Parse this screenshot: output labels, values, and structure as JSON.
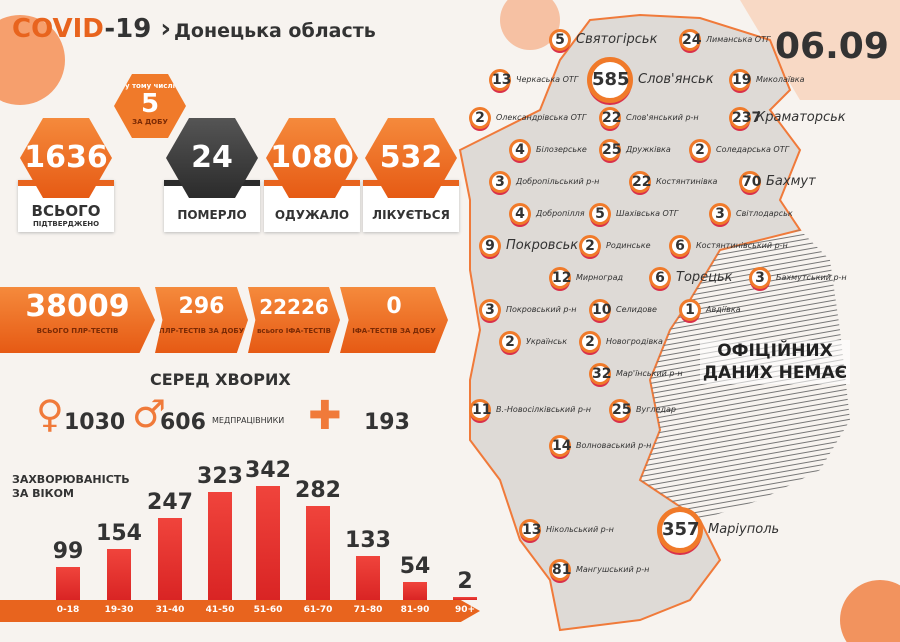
{
  "header": {
    "title_a": "COVID",
    "title_b": "-19",
    "subtitle": "Донецька область",
    "date": "06.09"
  },
  "totals": {
    "confirmed": {
      "value": "1636",
      "label": "ВСЬОГО",
      "sublabel": "ПІДТВЕРДЖЕНО"
    },
    "daily": {
      "pre": "у тому числі",
      "value": "5",
      "label": "ЗА ДОБУ"
    },
    "died": {
      "value": "24",
      "label": "ПОМЕРЛО"
    },
    "recovered": {
      "value": "1080",
      "label": "ОДУЖАЛО"
    },
    "treated": {
      "value": "532",
      "label": "ЛІКУЄТЬСЯ"
    }
  },
  "tests": [
    {
      "value": "38009",
      "label": "ВСЬОГО ПЛР-ТЕСТІВ"
    },
    {
      "value": "296",
      "label": "ПЛР-ТЕСТІВ ЗА ДОБУ"
    },
    {
      "value": "22226",
      "label": "всього ІФА-ТЕСТІВ"
    },
    {
      "value": "0",
      "label": "ІФА-ТЕСТІВ ЗА ДОБУ"
    }
  ],
  "among": {
    "title": "СЕРЕД ХВОРИХ",
    "female": "1030",
    "male": "606",
    "medics_label": "МЕДПРАЦІВНИКИ",
    "medics": "193"
  },
  "chart_data": {
    "type": "bar",
    "title": "ЗАХВОРЮВАНІСТЬ ЗА ВІКОМ",
    "categories": [
      "0-18",
      "19-30",
      "31-40",
      "41-50",
      "51-60",
      "61-70",
      "71-80",
      "81-90",
      "90+"
    ],
    "values": [
      99,
      154,
      247,
      323,
      342,
      282,
      133,
      54,
      2
    ],
    "color": "#e8302c"
  },
  "map": {
    "no_data": "ОФІЦІЙНИХ ДАНИХ НЕМАЄ",
    "markers": [
      {
        "value": "5",
        "label": "Святогірськ"
      },
      {
        "value": "24",
        "label": "Лиманська ОТГ"
      },
      {
        "value": "13",
        "label": "Черкаська ОТГ"
      },
      {
        "value": "585",
        "label": "Слов'янськ"
      },
      {
        "value": "19",
        "label": "Миколаївка"
      },
      {
        "value": "237",
        "label": "Краматорськ"
      },
      {
        "value": "22",
        "label": "Слов'янський р-н"
      },
      {
        "value": "25",
        "label": "Дружківка"
      },
      {
        "value": "2",
        "label": "Соледарська ОТГ"
      },
      {
        "value": "2",
        "label": "Олександрівська ОТГ"
      },
      {
        "value": "70",
        "label": "Бахмут"
      },
      {
        "value": "22",
        "label": "Костянтинівка"
      },
      {
        "value": "4",
        "label": "Білозерське"
      },
      {
        "value": "3",
        "label": "Світлодарськ"
      },
      {
        "value": "3",
        "label": "Бахмутський р-н"
      },
      {
        "value": "5",
        "label": "Шахівська ОТГ"
      },
      {
        "value": "6",
        "label": "Костянтинівський р-н"
      },
      {
        "value": "6",
        "label": "Торецьк"
      },
      {
        "value": "3",
        "label": "Добропільський р-н"
      },
      {
        "value": "4",
        "label": "Добропілля"
      },
      {
        "value": "2",
        "label": "Родинське"
      },
      {
        "value": "9",
        "label": "Покровськ"
      },
      {
        "value": "12",
        "label": "Мирноград"
      },
      {
        "value": "1",
        "label": "Авдіївка"
      },
      {
        "value": "3",
        "label": "Покровський р-н"
      },
      {
        "value": "10",
        "label": "Селидове"
      },
      {
        "value": "2",
        "label": "Українськ"
      },
      {
        "value": "2",
        "label": "Новогродівка"
      },
      {
        "value": "32",
        "label": "Мар'їнський р-н"
      },
      {
        "value": "11",
        "label": "В.-Новосілківський р-н"
      },
      {
        "value": "25",
        "label": "Вугледар"
      },
      {
        "value": "14",
        "label": "Волноваський р-н"
      },
      {
        "value": "13",
        "label": "Нікольський р-н"
      },
      {
        "value": "81",
        "label": "Мангушський р-н"
      },
      {
        "value": "357",
        "label": "Маріуполь"
      }
    ]
  }
}
